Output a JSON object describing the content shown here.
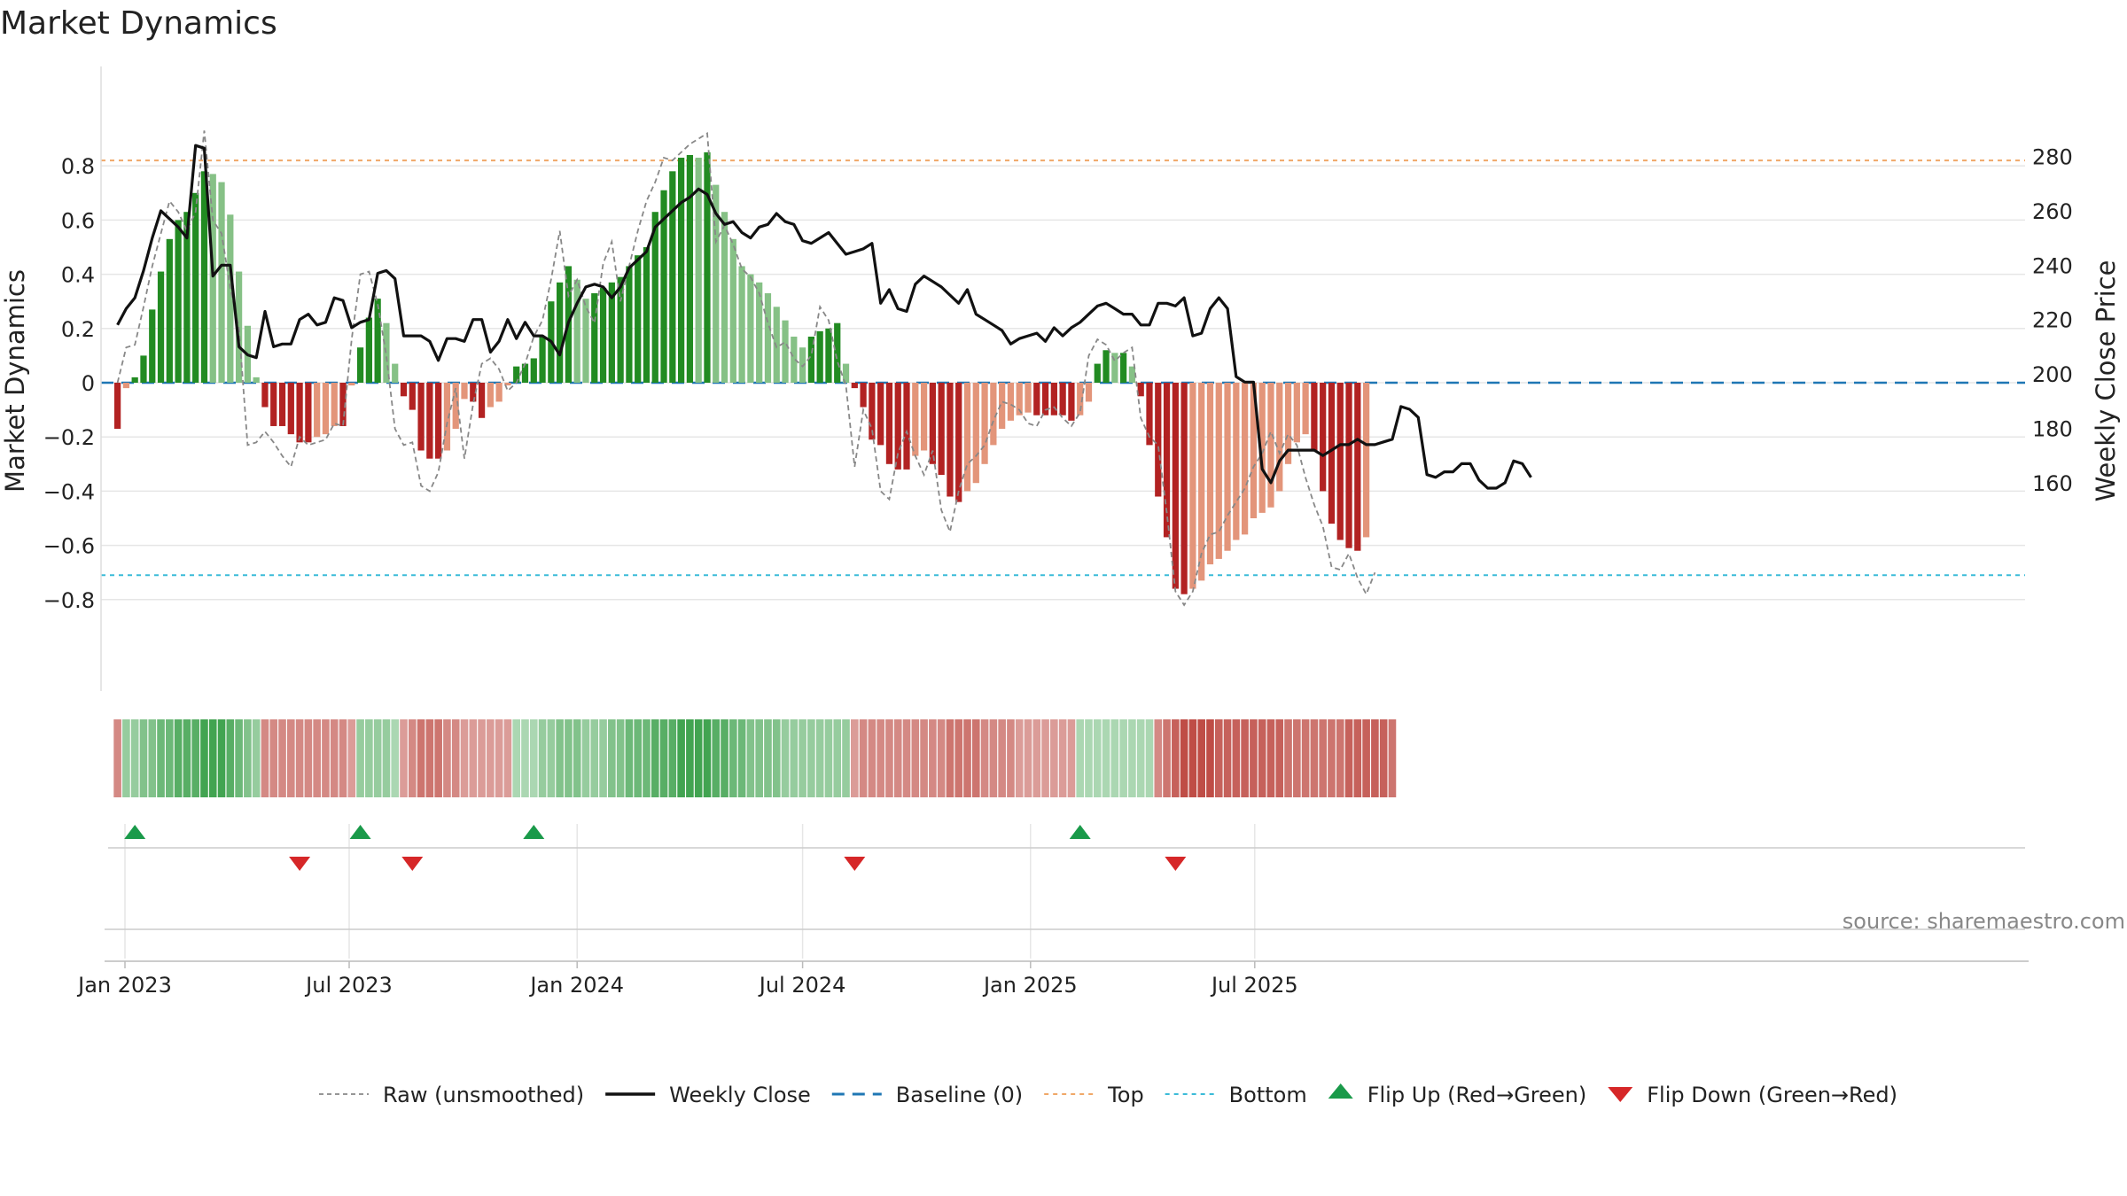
{
  "chart_data": {
    "type": "bar",
    "title": "Market Dynamics",
    "ylabel_left": "Market Dynamics",
    "ylabel_right": "Weekly Close Price",
    "ylim_left": [
      -0.9,
      0.92
    ],
    "ylim_right": [
      150,
      290
    ],
    "yticks_left": [
      0.8,
      0.6,
      0.4,
      0.2,
      0,
      -0.2,
      -0.4,
      -0.6,
      -0.8
    ],
    "yticks_left_labels": [
      "0.8",
      "0.6",
      "0.4",
      "0.2",
      "0",
      "−0.2",
      "−0.4",
      "−0.6",
      "−0.8"
    ],
    "yticks_right": [
      280,
      260,
      240,
      220,
      200,
      180,
      160
    ],
    "x_start": "2022-12-26",
    "x_step_days": 7,
    "x_ticks": [
      {
        "date": "2023-01-01",
        "label": "Jan 2023"
      },
      {
        "date": "2023-07-01",
        "label": "Jul 2023"
      },
      {
        "date": "2024-01-01",
        "label": "Jan 2024"
      },
      {
        "date": "2024-07-01",
        "label": "Jul 2024"
      },
      {
        "date": "2025-01-01",
        "label": "Jan 2025"
      },
      {
        "date": "2025-07-01",
        "label": "Jul 2025"
      }
    ],
    "top_level": 0.82,
    "bottom_level": -0.71,
    "series": [
      {
        "name": "Market Dynamics",
        "kind": "bar",
        "values": [
          -0.17,
          -0.02,
          0.02,
          0.1,
          0.27,
          0.41,
          0.53,
          0.6,
          0.63,
          0.7,
          0.78,
          0.77,
          0.74,
          0.62,
          0.41,
          0.21,
          0.02,
          -0.09,
          -0.16,
          -0.16,
          -0.19,
          -0.22,
          -0.22,
          -0.2,
          -0.19,
          -0.16,
          -0.16,
          -0.01,
          0.13,
          0.24,
          0.31,
          0.22,
          0.07,
          -0.05,
          -0.1,
          -0.25,
          -0.28,
          -0.28,
          -0.25,
          -0.17,
          -0.06,
          -0.07,
          -0.13,
          -0.09,
          -0.07,
          -0.01,
          0.06,
          0.07,
          0.09,
          0.17,
          0.3,
          0.37,
          0.43,
          0.38,
          0.31,
          0.33,
          0.35,
          0.37,
          0.39,
          0.43,
          0.47,
          0.5,
          0.63,
          0.71,
          0.78,
          0.83,
          0.84,
          0.83,
          0.85,
          0.73,
          0.63,
          0.53,
          0.43,
          0.4,
          0.37,
          0.33,
          0.28,
          0.23,
          0.17,
          0.13,
          0.17,
          0.19,
          0.2,
          0.22,
          0.07,
          -0.02,
          -0.09,
          -0.21,
          -0.23,
          -0.3,
          -0.32,
          -0.32,
          -0.27,
          -0.25,
          -0.3,
          -0.34,
          -0.42,
          -0.44,
          -0.4,
          -0.37,
          -0.3,
          -0.23,
          -0.17,
          -0.14,
          -0.12,
          -0.11,
          -0.12,
          -0.12,
          -0.12,
          -0.12,
          -0.14,
          -0.12,
          -0.07,
          0.07,
          0.12,
          0.11,
          0.11,
          0.06,
          -0.05,
          -0.23,
          -0.42,
          -0.57,
          -0.76,
          -0.78,
          -0.76,
          -0.73,
          -0.67,
          -0.65,
          -0.62,
          -0.58,
          -0.56,
          -0.5,
          -0.48,
          -0.46,
          -0.4,
          -0.3,
          -0.22,
          -0.19,
          -0.25,
          -0.4,
          -0.52,
          -0.58,
          -0.61,
          -0.62,
          -0.57
        ]
      },
      {
        "name": "Raw (unsmoothed)",
        "kind": "line",
        "values": [
          0.0,
          0.13,
          0.14,
          0.28,
          0.43,
          0.55,
          0.67,
          0.63,
          0.56,
          0.63,
          0.93,
          0.6,
          0.55,
          0.35,
          0.2,
          -0.23,
          -0.22,
          -0.18,
          -0.22,
          -0.27,
          -0.31,
          -0.2,
          -0.23,
          -0.22,
          -0.21,
          -0.15,
          -0.16,
          0.16,
          0.4,
          0.41,
          0.29,
          0.1,
          -0.17,
          -0.23,
          -0.22,
          -0.38,
          -0.4,
          -0.33,
          -0.15,
          -0.02,
          -0.28,
          -0.08,
          0.07,
          0.09,
          0.05,
          -0.03,
          0.0,
          0.07,
          0.17,
          0.23,
          0.38,
          0.56,
          0.32,
          0.38,
          0.28,
          0.22,
          0.44,
          0.52,
          0.3,
          0.43,
          0.56,
          0.67,
          0.74,
          0.83,
          0.82,
          0.85,
          0.88,
          0.9,
          0.92,
          0.52,
          0.58,
          0.51,
          0.42,
          0.39,
          0.33,
          0.22,
          0.13,
          0.15,
          0.09,
          0.06,
          0.1,
          0.28,
          0.23,
          0.08,
          -0.01,
          -0.31,
          -0.1,
          -0.17,
          -0.4,
          -0.43,
          -0.26,
          -0.18,
          -0.27,
          -0.34,
          -0.25,
          -0.47,
          -0.55,
          -0.4,
          -0.3,
          -0.27,
          -0.23,
          -0.14,
          -0.07,
          -0.08,
          -0.1,
          -0.15,
          -0.16,
          -0.1,
          -0.09,
          -0.13,
          -0.16,
          -0.11,
          0.1,
          0.16,
          0.14,
          0.08,
          0.11,
          0.13,
          -0.13,
          -0.2,
          -0.23,
          -0.48,
          -0.77,
          -0.82,
          -0.77,
          -0.63,
          -0.56,
          -0.55,
          -0.49,
          -0.44,
          -0.39,
          -0.31,
          -0.26,
          -0.18,
          -0.26,
          -0.19,
          -0.23,
          -0.35,
          -0.45,
          -0.53,
          -0.68,
          -0.69,
          -0.63,
          -0.72,
          -0.78,
          -0.7
        ]
      },
      {
        "name": "Weekly Close",
        "kind": "line",
        "axis": "right",
        "values": [
          218,
          224,
          228,
          238,
          250,
          260,
          257,
          254,
          250,
          284,
          283,
          236,
          240,
          240,
          210,
          207,
          206,
          223,
          210,
          211,
          211,
          220,
          222,
          218,
          219,
          228,
          227,
          217,
          219,
          220,
          237,
          238,
          235,
          214,
          214,
          214,
          212,
          205,
          213,
          213,
          212,
          220,
          220,
          208,
          212,
          220,
          213,
          219,
          214,
          214,
          212,
          207,
          219,
          226,
          232,
          233,
          232,
          228,
          232,
          239,
          242,
          245,
          254,
          257,
          260,
          263,
          265,
          268,
          266,
          259,
          255,
          256,
          252,
          250,
          254,
          255,
          259,
          256,
          255,
          249,
          248,
          250,
          252,
          248,
          244,
          245,
          246,
          248,
          226,
          231,
          224,
          223,
          233,
          236,
          234,
          232,
          229,
          226,
          231,
          222,
          220,
          218,
          216,
          211,
          213,
          214,
          215,
          212,
          217,
          214,
          217,
          219,
          222,
          225,
          226,
          224,
          222,
          222,
          218,
          218,
          226,
          226,
          225,
          228,
          214,
          215,
          224,
          228,
          224,
          199,
          197,
          197,
          165,
          160,
          168,
          172,
          172,
          172,
          172,
          170,
          172,
          174,
          174,
          176,
          174,
          174,
          175,
          176,
          188,
          187,
          184,
          163,
          162,
          164,
          164,
          167,
          167,
          161,
          158,
          158,
          160,
          168,
          167,
          162
        ]
      }
    ],
    "regime_strip": [
      -0.6,
      0.5,
      0.5,
      0.6,
      0.6,
      0.7,
      0.7,
      0.8,
      0.8,
      0.8,
      0.9,
      0.9,
      0.9,
      0.8,
      0.7,
      0.6,
      0.5,
      -0.6,
      -0.6,
      -0.6,
      -0.6,
      -0.6,
      -0.6,
      -0.6,
      -0.6,
      -0.6,
      -0.6,
      -0.5,
      0.5,
      0.5,
      0.5,
      0.5,
      0.4,
      -0.5,
      -0.6,
      -0.7,
      -0.7,
      -0.7,
      -0.6,
      -0.6,
      -0.5,
      -0.5,
      -0.5,
      -0.5,
      -0.5,
      -0.5,
      0.4,
      0.4,
      0.4,
      0.5,
      0.5,
      0.6,
      0.6,
      0.6,
      0.5,
      0.5,
      0.5,
      0.6,
      0.6,
      0.7,
      0.7,
      0.7,
      0.8,
      0.8,
      0.8,
      0.9,
      0.9,
      0.9,
      0.9,
      0.8,
      0.8,
      0.7,
      0.7,
      0.6,
      0.6,
      0.6,
      0.6,
      0.5,
      0.5,
      0.5,
      0.5,
      0.5,
      0.5,
      0.5,
      0.5,
      -0.5,
      -0.6,
      -0.6,
      -0.6,
      -0.6,
      -0.6,
      -0.6,
      -0.6,
      -0.6,
      -0.6,
      -0.6,
      -0.7,
      -0.7,
      -0.7,
      -0.7,
      -0.6,
      -0.6,
      -0.6,
      -0.6,
      -0.5,
      -0.5,
      -0.5,
      -0.5,
      -0.5,
      -0.5,
      -0.5,
      0.4,
      0.4,
      0.4,
      0.4,
      0.4,
      0.4,
      0.4,
      0.4,
      0.4,
      -0.6,
      -0.7,
      -0.8,
      -0.9,
      -0.9,
      -0.9,
      -0.9,
      -0.8,
      -0.8,
      -0.8,
      -0.8,
      -0.8,
      -0.8,
      -0.8,
      -0.8,
      -0.7,
      -0.7,
      -0.7,
      -0.7,
      -0.7,
      -0.7,
      -0.7,
      -0.8,
      -0.8,
      -0.8,
      -0.8,
      -0.8,
      -0.7
    ],
    "flips_up": [
      "2023-01-09",
      "2023-07-10",
      "2023-11-27",
      "2025-02-10"
    ],
    "flips_down": [
      "2023-05-22",
      "2023-08-21",
      "2024-08-12",
      "2025-04-28"
    ],
    "legend": [
      {
        "label": "Raw (unsmoothed)",
        "kind": "dotted"
      },
      {
        "label": "Weekly Close",
        "kind": "solid"
      },
      {
        "label": "Baseline (0)",
        "kind": "dashed"
      },
      {
        "label": "Top",
        "kind": "top"
      },
      {
        "label": "Bottom",
        "kind": "bottom"
      },
      {
        "label": "Flip Up (Red→Green)",
        "kind": "up"
      },
      {
        "label": "Flip Down (Green→Red)",
        "kind": "down"
      }
    ],
    "legend_position": "bottom-center",
    "source": "source: sharemaestro.com",
    "colors": {
      "bull_strong": "#228b22",
      "bull_weak": "#86c186",
      "bear_strong": "#b22222",
      "bear_weak": "#e3957a",
      "close": "#111111",
      "raw": "#888888",
      "baseline": "#1f77b4",
      "top": "#f0a868",
      "bottom": "#3bbbd8",
      "flip_up": "#1a9a4a",
      "flip_down": "#d62728"
    }
  }
}
